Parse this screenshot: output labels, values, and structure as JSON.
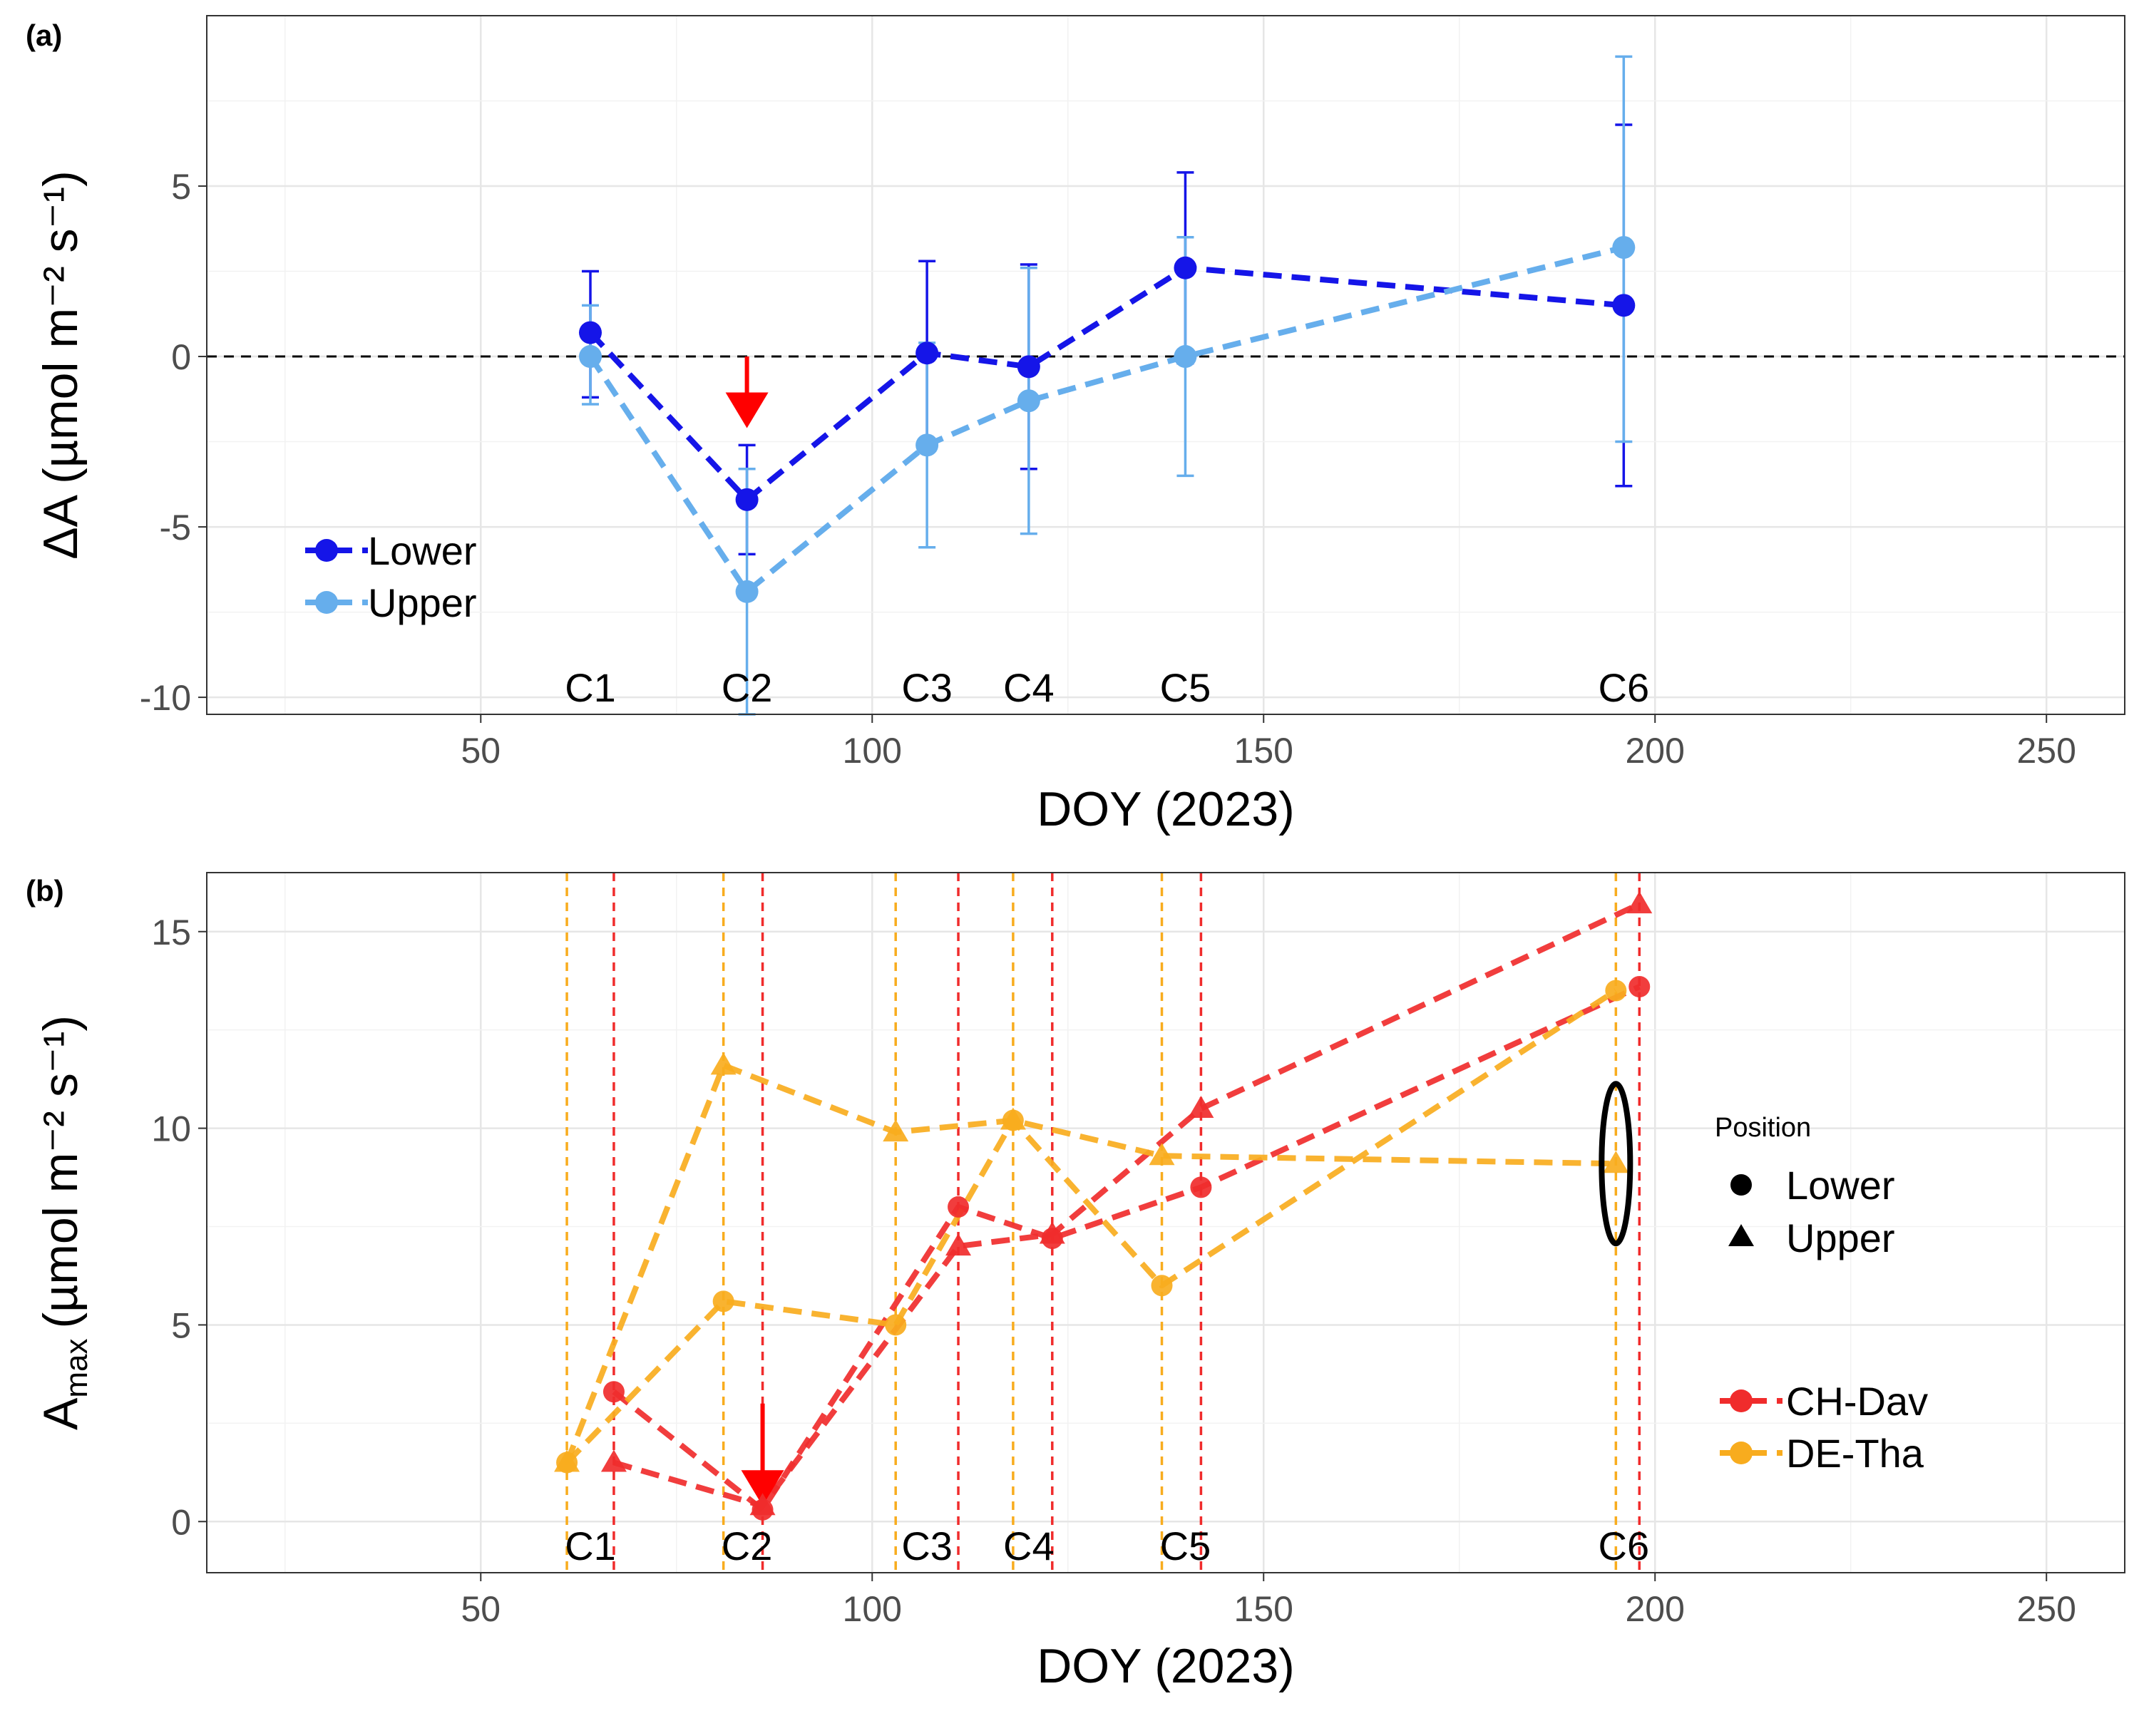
{
  "chart_data": [
    {
      "panel_label": "(a)",
      "type": "line",
      "xlabel": "DOY (2023)",
      "ylabel": "ΔA (µmol m⁻² s⁻¹)",
      "xlim": [
        15,
        260
      ],
      "ylim": [
        -10.5,
        10
      ],
      "x_ticks": [
        50,
        100,
        150,
        200,
        250
      ],
      "y_ticks": [
        -10,
        -5,
        0,
        5
      ],
      "x_tick_labels": [
        "50",
        "100",
        "150",
        "200",
        "250"
      ],
      "y_tick_labels": [
        "-10",
        "-5",
        "0",
        "5"
      ],
      "reference_line_y": 0,
      "grid": true,
      "legend_position": "bottom-left",
      "campaigns": [
        {
          "label": "C1",
          "x": 64
        },
        {
          "label": "C2",
          "x": 84
        },
        {
          "label": "C3",
          "x": 107
        },
        {
          "label": "C4",
          "x": 120
        },
        {
          "label": "C5",
          "x": 140
        },
        {
          "label": "C6",
          "x": 196
        }
      ],
      "arrow_at_x": 84,
      "series": [
        {
          "name": "Lower",
          "color": "#1515e8",
          "x": [
            64,
            84,
            107,
            120,
            140,
            196
          ],
          "y": [
            0.7,
            -4.2,
            0.1,
            -0.3,
            2.6,
            1.5
          ],
          "err_low": [
            -1.2,
            -5.8,
            -2.6,
            -3.3,
            -0.2,
            -3.8
          ],
          "err_high": [
            2.5,
            -2.6,
            2.8,
            2.7,
            5.4,
            6.8
          ]
        },
        {
          "name": "Upper",
          "color": "#66aeec",
          "x": [
            64,
            84,
            107,
            120,
            140,
            196
          ],
          "y": [
            0.0,
            -6.9,
            -2.6,
            -1.3,
            0.0,
            3.2
          ],
          "err_low": [
            -1.4,
            -10.5,
            -5.6,
            -5.2,
            -3.5,
            -2.5
          ],
          "err_high": [
            1.5,
            -3.3,
            0.4,
            2.6,
            3.5,
            8.8
          ]
        }
      ]
    },
    {
      "panel_label": "(b)",
      "type": "line",
      "xlabel": "DOY (2023)",
      "ylabel_main": "A",
      "ylabel_sub": "max",
      "ylabel_rest": "(µmol m⁻² s⁻¹)",
      "xlim": [
        15,
        260
      ],
      "ylim": [
        -1.3,
        16.5
      ],
      "x_ticks": [
        50,
        100,
        150,
        200,
        250
      ],
      "y_ticks": [
        0,
        5,
        10,
        15
      ],
      "x_tick_labels": [
        "50",
        "100",
        "150",
        "200",
        "250"
      ],
      "y_tick_labels": [
        "0",
        "5",
        "10",
        "15"
      ],
      "grid": true,
      "legend_position": "right",
      "shape_legend_title": "Position",
      "shape_legend": [
        "Lower",
        "Upper"
      ],
      "campaigns": [
        {
          "label": "C1",
          "x": 64
        },
        {
          "label": "C2",
          "x": 84
        },
        {
          "label": "C3",
          "x": 107
        },
        {
          "label": "C4",
          "x": 120
        },
        {
          "label": "C5",
          "x": 140
        },
        {
          "label": "C6",
          "x": 196
        }
      ],
      "site_dates": {
        "CH-Dav": [
          67,
          86,
          111,
          123,
          142,
          198
        ],
        "DE-Tha": [
          61,
          81,
          103,
          118,
          137,
          195
        ]
      },
      "arrow_at_x": 86,
      "ellipse_at": {
        "x": 195,
        "y": 9.1
      },
      "series": [
        {
          "name": "CH-Dav",
          "position": "Lower",
          "color": "#f02c2c",
          "x": [
            67,
            86,
            111,
            123,
            142,
            198
          ],
          "y": [
            3.3,
            0.3,
            8.0,
            7.2,
            8.5,
            13.6
          ]
        },
        {
          "name": "CH-Dav",
          "position": "Upper",
          "color": "#f02c2c",
          "x": [
            67,
            86,
            111,
            123,
            142,
            198
          ],
          "y": [
            1.5,
            0.4,
            7.0,
            7.3,
            10.5,
            15.7
          ]
        },
        {
          "name": "DE-Tha",
          "position": "Lower",
          "color": "#f8ac1e",
          "x": [
            61,
            81,
            103,
            118,
            137,
            195
          ],
          "y": [
            1.5,
            5.6,
            5.0,
            10.2,
            6.0,
            13.5
          ]
        },
        {
          "name": "DE-Tha",
          "position": "Upper",
          "color": "#f8ac1e",
          "x": [
            61,
            81,
            103,
            118,
            137,
            195
          ],
          "y": [
            1.5,
            11.6,
            9.9,
            10.2,
            9.3,
            9.1
          ]
        }
      ]
    }
  ]
}
